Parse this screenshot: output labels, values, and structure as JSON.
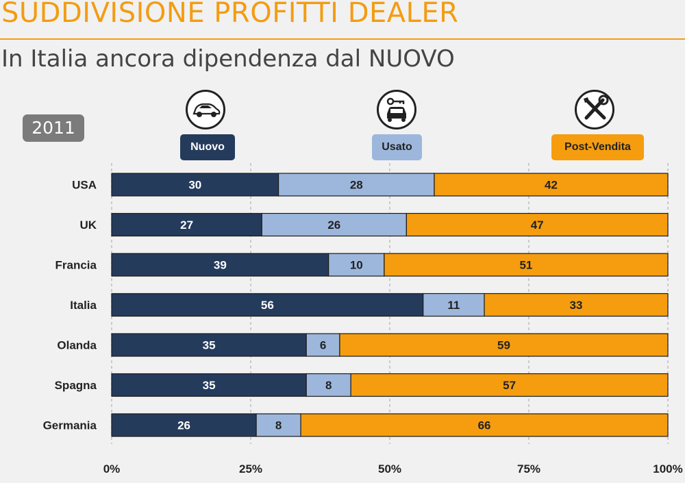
{
  "header": {
    "title": "SUDDIVISIONE PROFITTI DEALER",
    "subtitle": "In Italia ancora dipendenza dal NUOVO",
    "year": "2011"
  },
  "legend": [
    {
      "label": "Nuovo",
      "icon": "car-icon",
      "color": "#253b5c"
    },
    {
      "label": "Usato",
      "icon": "car-key-icon",
      "color": "#9db7dc"
    },
    {
      "label": "Post-Vendita",
      "icon": "tools-icon",
      "color": "#f59d0f"
    }
  ],
  "chart_data": {
    "type": "bar",
    "orientation": "horizontal",
    "stacked": true,
    "categories": [
      "USA",
      "UK",
      "Francia",
      "Italia",
      "Olanda",
      "Spagna",
      "Germania"
    ],
    "series": [
      {
        "name": "Nuovo",
        "color": "#253b5c",
        "values": [
          30,
          27,
          39,
          56,
          35,
          35,
          26
        ]
      },
      {
        "name": "Usato",
        "color": "#9db7dc",
        "values": [
          28,
          26,
          10,
          11,
          6,
          8,
          8
        ]
      },
      {
        "name": "Post-Vendita",
        "color": "#f59d0f",
        "values": [
          42,
          47,
          51,
          33,
          59,
          57,
          66
        ]
      }
    ],
    "xlim": [
      0,
      100
    ],
    "xticks": [
      "0%",
      "25%",
      "50%",
      "75%",
      "100%"
    ],
    "grid": "vertical-dashed"
  }
}
